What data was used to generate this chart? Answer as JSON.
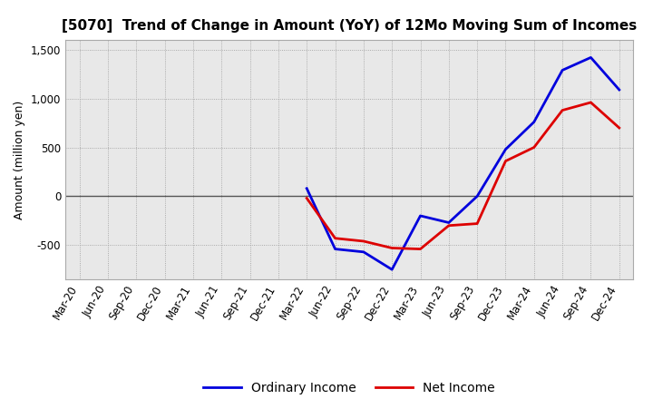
{
  "title": "[5070]  Trend of Change in Amount (YoY) of 12Mo Moving Sum of Incomes",
  "ylabel": "Amount (million yen)",
  "background_color": "#ffffff",
  "plot_bg_color": "#e8e8e8",
  "x_labels": [
    "Mar-20",
    "Jun-20",
    "Sep-20",
    "Dec-20",
    "Mar-21",
    "Jun-21",
    "Sep-21",
    "Dec-21",
    "Mar-22",
    "Jun-22",
    "Sep-22",
    "Dec-22",
    "Mar-23",
    "Jun-23",
    "Sep-23",
    "Dec-23",
    "Mar-24",
    "Jun-24",
    "Sep-24",
    "Dec-24"
  ],
  "ordinary_income": [
    null,
    null,
    null,
    null,
    null,
    null,
    null,
    null,
    80,
    -540,
    -570,
    -750,
    -200,
    -270,
    0,
    480,
    760,
    1290,
    1420,
    1090
  ],
  "net_income": [
    null,
    null,
    null,
    null,
    null,
    null,
    null,
    null,
    -20,
    -430,
    -460,
    -530,
    -540,
    -300,
    -280,
    360,
    500,
    880,
    960,
    700
  ],
  "ordinary_color": "#0000dd",
  "net_color": "#dd0000",
  "ylim": [
    -850,
    1600
  ],
  "yticks": [
    -500,
    0,
    500,
    1000,
    1500
  ],
  "line_width": 2.0,
  "title_fontsize": 11,
  "legend_fontsize": 10,
  "tick_fontsize": 8.5
}
